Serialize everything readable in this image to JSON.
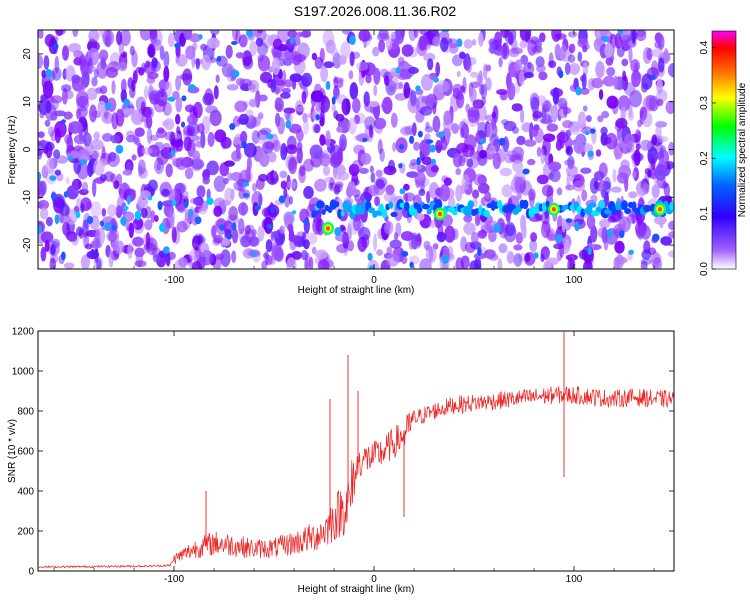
{
  "title": "S197.2026.008.11.36.R02",
  "chart_data": [
    {
      "type": "heatmap",
      "xlabel": "Height of straight line (km)",
      "ylabel": "Frequency (Hz)",
      "xlim": [
        -168,
        150
      ],
      "ylim": [
        -25,
        25
      ],
      "xticks": [
        -100,
        0,
        100
      ],
      "yticks": [
        -20,
        -10,
        0,
        10,
        20
      ],
      "colorbar": {
        "label": "Normalized spectral amplitude",
        "range": [
          0.0,
          0.43
        ],
        "ticks": [
          0.0,
          0.1,
          0.2,
          0.3,
          0.4
        ],
        "colors": [
          "#ffffff",
          "#7a00ff",
          "#1f1fff",
          "#00ffff",
          "#00ff00",
          "#ffff00",
          "#ff9900",
          "#ff0000",
          "#ff00ff"
        ]
      },
      "feature": {
        "description_band": "horizontal signal band",
        "frequency": -12.5,
        "x_start": -30,
        "x_end": 150,
        "strong_points": [
          [
            -23,
            -16.5,
            0.28
          ],
          [
            33,
            -13.5,
            0.26
          ],
          [
            90,
            -12.5,
            0.25
          ],
          [
            143,
            -12.5,
            0.26
          ]
        ]
      }
    },
    {
      "type": "line",
      "xlabel": "Height of straight line (km)",
      "ylabel": "SNR (10 * v/v)",
      "xlim": [
        -168,
        150
      ],
      "ylim": [
        0,
        1200
      ],
      "xticks": [
        -100,
        0,
        100
      ],
      "yticks": [
        0,
        200,
        400,
        600,
        800,
        1000,
        1200
      ],
      "color": "#ee2222",
      "x": [
        -168,
        -140,
        -110,
        -102,
        -100,
        -90,
        -80,
        -70,
        -60,
        -50,
        -40,
        -30,
        -25,
        -20,
        -15,
        -12,
        -8,
        -5,
        0,
        5,
        10,
        15,
        20,
        30,
        40,
        50,
        60,
        70,
        80,
        90,
        95,
        100,
        110,
        120,
        130,
        140,
        150
      ],
      "values": [
        20,
        22,
        25,
        28,
        60,
        110,
        140,
        130,
        110,
        115,
        140,
        170,
        200,
        260,
        320,
        350,
        540,
        560,
        570,
        600,
        640,
        680,
        760,
        800,
        830,
        840,
        850,
        860,
        870,
        880,
        880,
        880,
        870,
        860,
        870,
        860,
        860
      ],
      "spikes": [
        [
          -84,
          400
        ],
        [
          -22,
          860
        ],
        [
          -13,
          1080
        ],
        [
          -8,
          900
        ],
        [
          95,
          1200
        ],
        [
          95,
          470
        ],
        [
          15,
          270
        ]
      ]
    }
  ]
}
